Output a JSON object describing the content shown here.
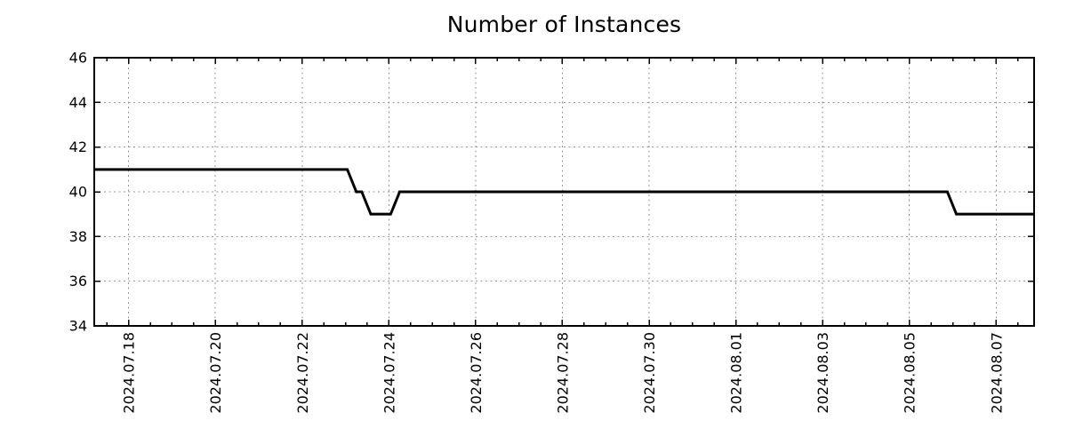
{
  "title": "Number of Instances",
  "colors": {
    "background": "#ffffff",
    "plot_border": "#000000",
    "grid": "#969696",
    "tick": "#000000",
    "text": "#000000",
    "line": "#000000"
  },
  "chart_data": {
    "type": "line",
    "title": "Number of Instances",
    "x_type": "time",
    "x_range": [
      "2024-07-17 05:00",
      "2024-08-07 21:00"
    ],
    "ylim": [
      34,
      46
    ],
    "y_ticks": [
      34,
      36,
      38,
      40,
      42,
      44,
      46
    ],
    "x_ticks": [
      {
        "t": "2024-07-18 00:00",
        "label": "2024.07.18"
      },
      {
        "t": "2024-07-20 00:00",
        "label": "2024.07.20"
      },
      {
        "t": "2024-07-22 00:00",
        "label": "2024.07.22"
      },
      {
        "t": "2024-07-24 00:00",
        "label": "2024.07.24"
      },
      {
        "t": "2024-07-26 00:00",
        "label": "2024.07.26"
      },
      {
        "t": "2024-07-28 00:00",
        "label": "2024.07.28"
      },
      {
        "t": "2024-07-30 00:00",
        "label": "2024.07.30"
      },
      {
        "t": "2024-08-01 00:00",
        "label": "2024.08.01"
      },
      {
        "t": "2024-08-03 00:00",
        "label": "2024.08.03"
      },
      {
        "t": "2024-08-05 00:00",
        "label": "2024.08.05"
      },
      {
        "t": "2024-08-07 00:00",
        "label": "2024.08.07"
      }
    ],
    "minor_tick_interval_hours": 12,
    "grid": {
      "style": "dotted",
      "on": "major_ticks"
    },
    "legend": null,
    "series": [
      {
        "name": "Number of Instances",
        "color": "#000000",
        "line_width": 3,
        "points": [
          [
            "2024-07-17 05:00",
            41
          ],
          [
            "2024-07-23 01:00",
            41
          ],
          [
            "2024-07-23 06:00",
            40
          ],
          [
            "2024-07-23 09:00",
            40
          ],
          [
            "2024-07-23 14:00",
            39
          ],
          [
            "2024-07-24 01:00",
            39
          ],
          [
            "2024-07-24 06:00",
            40
          ],
          [
            "2024-08-05 21:00",
            40
          ],
          [
            "2024-08-06 02:00",
            39
          ],
          [
            "2024-08-07 21:00",
            39
          ]
        ]
      }
    ]
  }
}
